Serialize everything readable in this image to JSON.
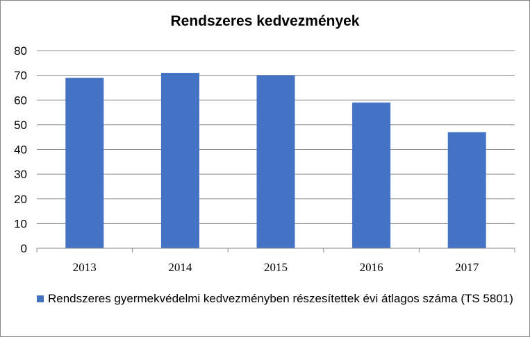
{
  "chart_data": {
    "type": "bar",
    "title": "Rendszeres kedvezmények",
    "categories": [
      "2013",
      "2014",
      "2015",
      "2016",
      "2017"
    ],
    "series": [
      {
        "name": "Rendszeres gyermekvédelmi kedvezményben részesítettek évi átlagos száma (TS 5801)",
        "values": [
          69,
          71,
          70,
          59,
          47
        ],
        "color": "#4472C4"
      }
    ],
    "ylim": [
      0,
      80
    ],
    "yticks": [
      "0",
      "10",
      "20",
      "30",
      "40",
      "50",
      "60",
      "70",
      "80"
    ],
    "grid": true,
    "legend": "bottom"
  }
}
